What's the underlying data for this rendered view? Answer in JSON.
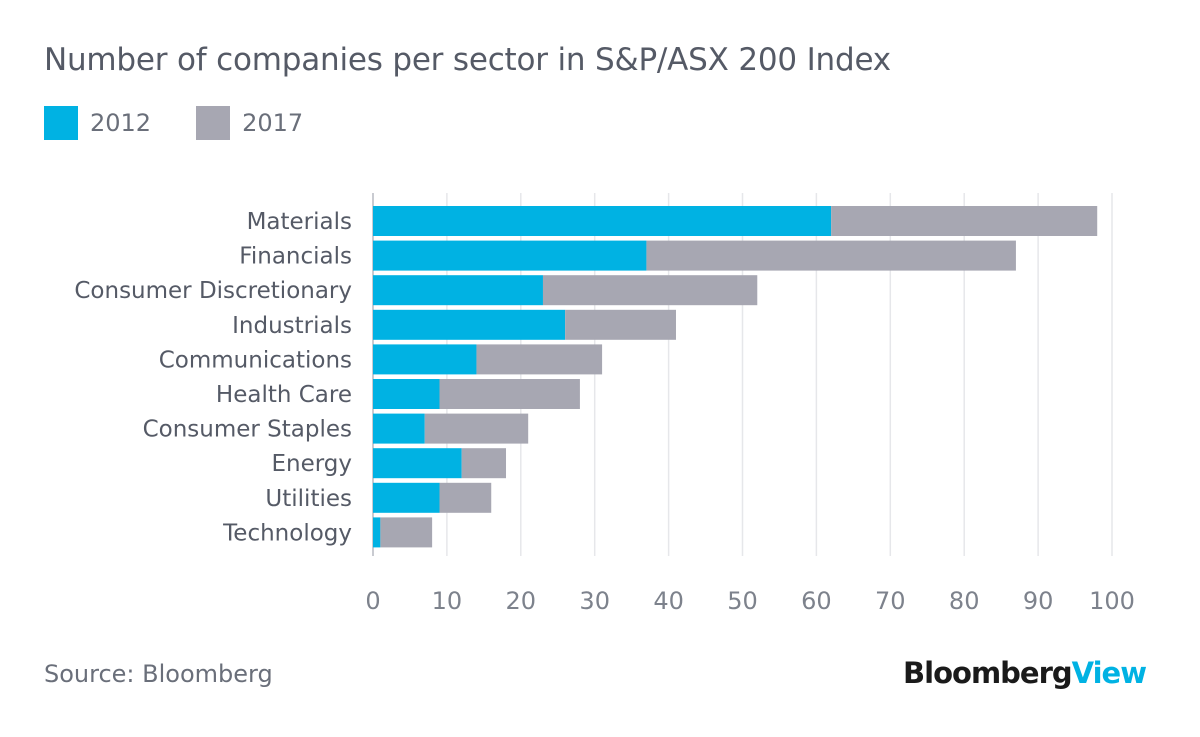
{
  "chart_data": {
    "type": "bar",
    "orientation": "horizontal",
    "stacked": true,
    "title": "Number of companies per sector in S&P/ASX 200 Index",
    "categories": [
      "Materials",
      "Financials",
      "Consumer Discretionary",
      "Industrials",
      "Communications",
      "Health Care",
      "Consumer Staples",
      "Energy",
      "Utilities",
      "Technology"
    ],
    "series": [
      {
        "name": "2012",
        "color": "#00b2e3",
        "values": [
          62,
          37,
          23,
          26,
          14,
          9,
          7,
          12,
          9,
          1
        ]
      },
      {
        "name": "2017",
        "color": "#a7a7b2",
        "values": [
          36,
          50,
          29,
          15,
          17,
          19,
          14,
          6,
          7,
          7
        ]
      }
    ],
    "xlim": [
      0,
      100
    ],
    "xticks": [
      0,
      10,
      20,
      30,
      40,
      50,
      60,
      70,
      80,
      90,
      100
    ],
    "xlabel": "",
    "ylabel": "",
    "grid": true,
    "legend": "top-left"
  },
  "footer": {
    "source": "Source: Bloomberg",
    "brand_main": "Bloomberg",
    "brand_accent": "View"
  }
}
